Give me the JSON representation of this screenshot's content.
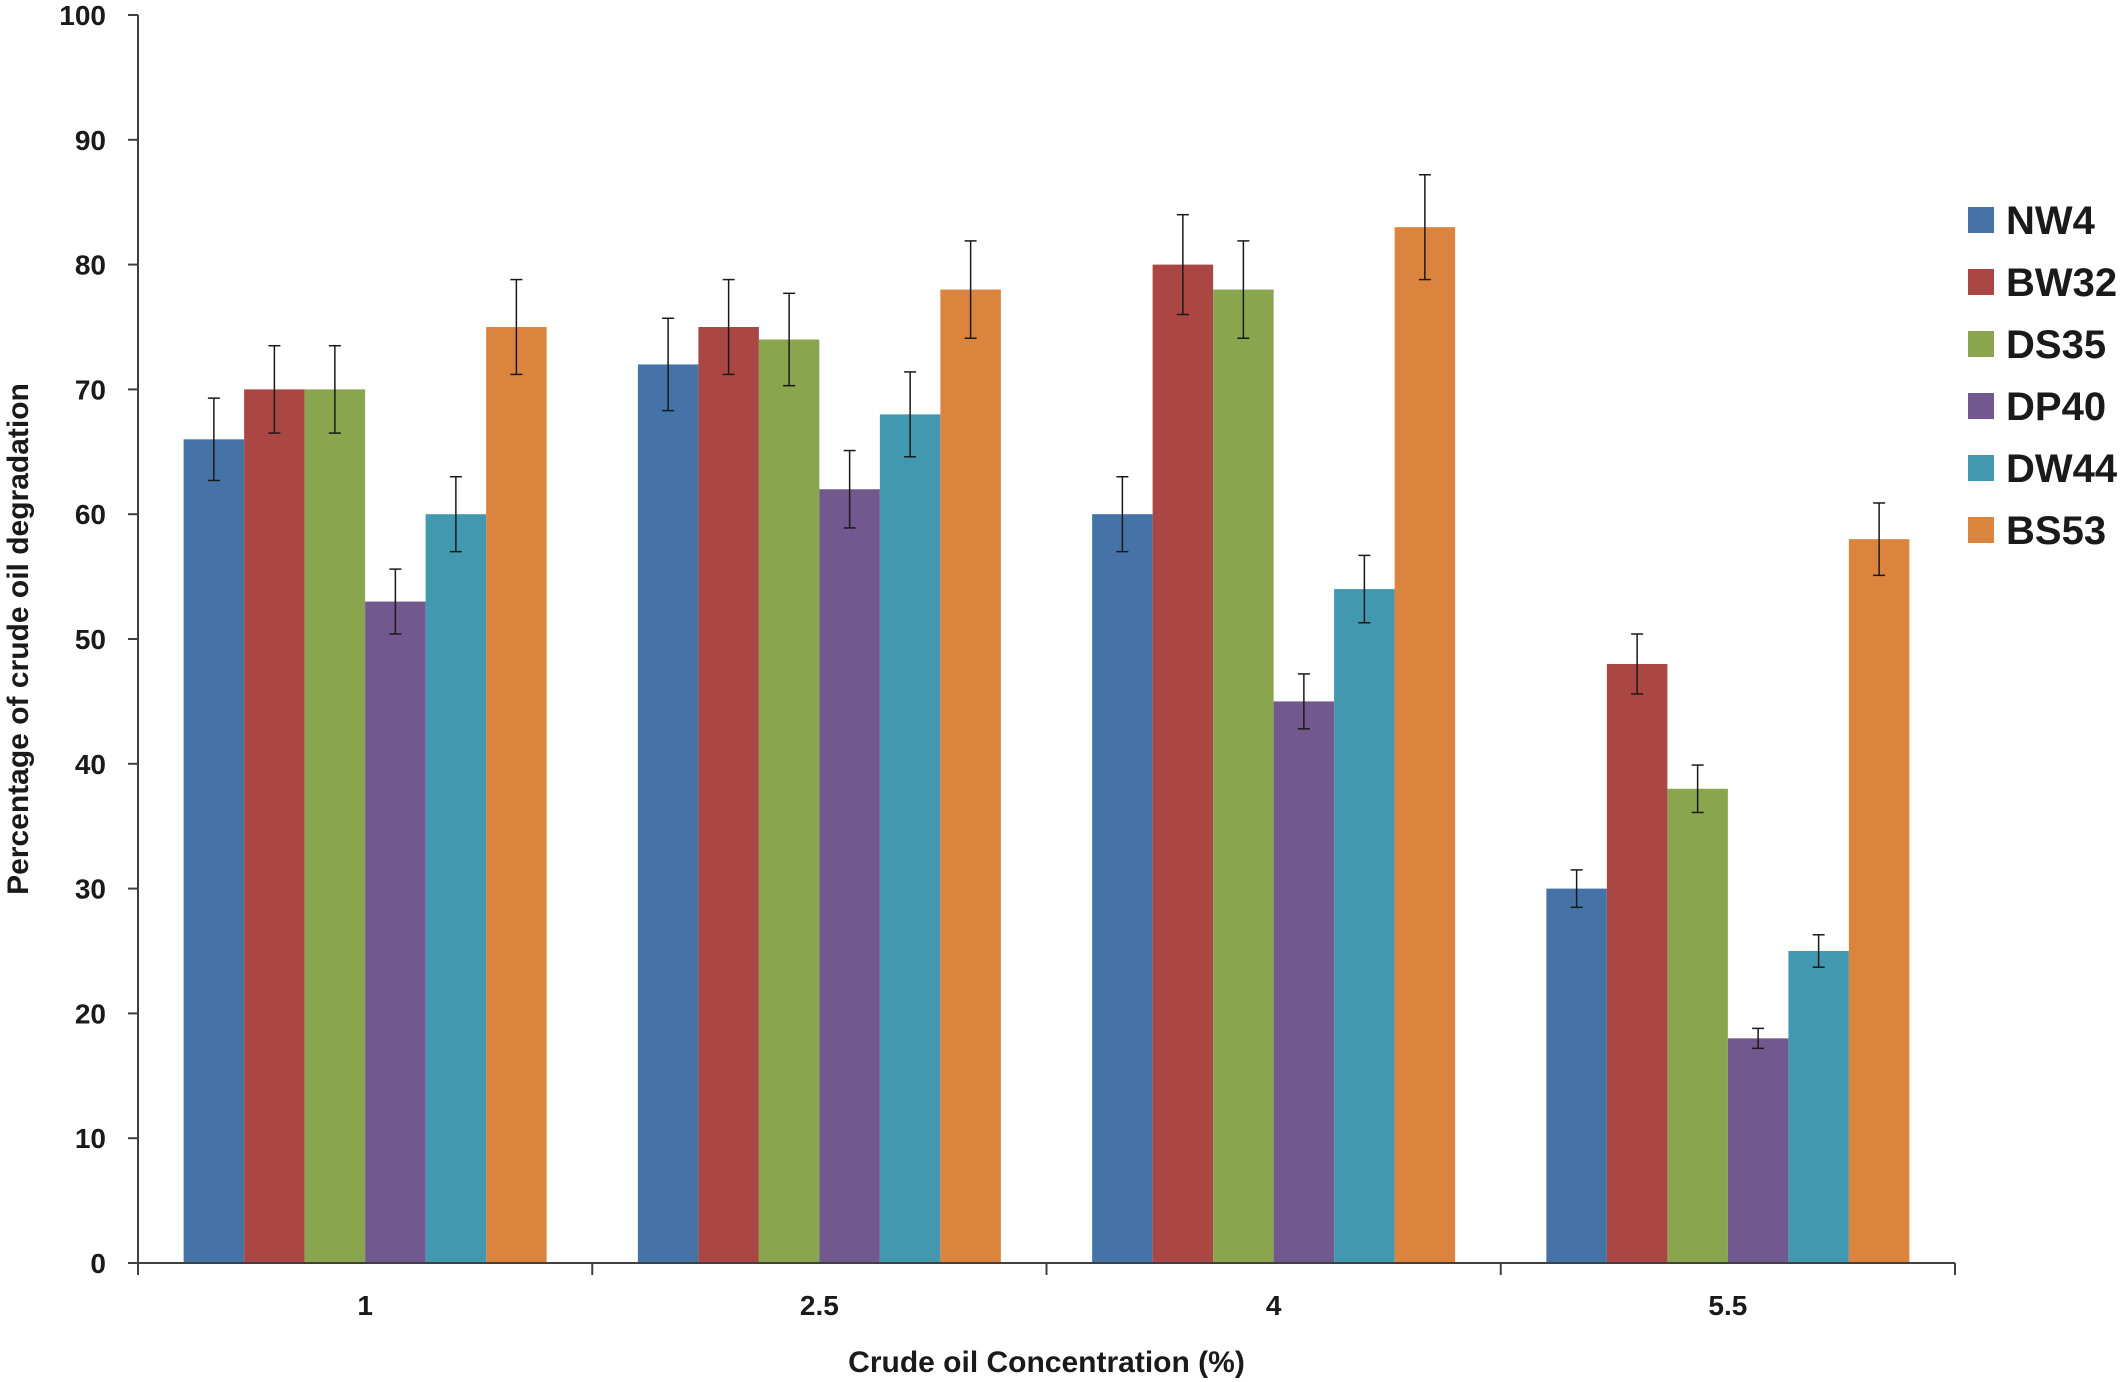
{
  "chart_data": {
    "type": "bar",
    "title": "",
    "xlabel": "Crude oil Concentration (%)",
    "ylabel": "Percentage of crude oil degradation",
    "ylim": [
      0,
      100
    ],
    "yticks": [
      "0",
      "10",
      "20",
      "30",
      "40",
      "50",
      "60",
      "70",
      "80",
      "90",
      "100"
    ],
    "categories": [
      "1",
      "2.5",
      "4",
      "5.5"
    ],
    "legend_position": "right",
    "grid": false,
    "series": [
      {
        "name": "NW4",
        "color": "#4572A7",
        "values": [
          66,
          72,
          60,
          30
        ],
        "errors": [
          3.3,
          3.7,
          3.0,
          1.5
        ]
      },
      {
        "name": "BW32",
        "color": "#AA4643",
        "values": [
          70,
          75,
          80,
          48
        ],
        "errors": [
          3.5,
          3.8,
          4.0,
          2.4
        ]
      },
      {
        "name": "DS35",
        "color": "#89A54E",
        "values": [
          70,
          74,
          78,
          38
        ],
        "errors": [
          3.5,
          3.7,
          3.9,
          1.9
        ]
      },
      {
        "name": "DP40",
        "color": "#71588F",
        "values": [
          53,
          62,
          45,
          18
        ],
        "errors": [
          2.6,
          3.1,
          2.2,
          0.8
        ]
      },
      {
        "name": "DW44",
        "color": "#4198AF",
        "values": [
          60,
          68,
          54,
          25
        ],
        "errors": [
          3.0,
          3.4,
          2.7,
          1.3
        ]
      },
      {
        "name": "BS53",
        "color": "#DB843D",
        "values": [
          75,
          78,
          83,
          58
        ],
        "errors": [
          3.8,
          3.9,
          4.2,
          2.9
        ]
      }
    ]
  }
}
